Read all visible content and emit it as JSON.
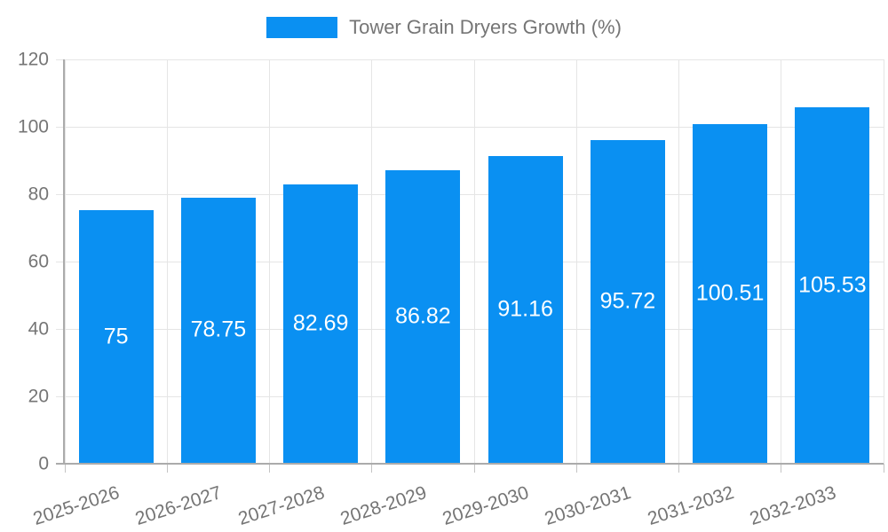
{
  "chart_data": {
    "type": "bar",
    "legend": "Tower Grain Dryers Growth (%)",
    "legend_position": "top",
    "categories": [
      "2025-2026",
      "2026-2027",
      "2027-2028",
      "2028-2029",
      "2029-2030",
      "2030-2031",
      "2031-2032",
      "2032-2033"
    ],
    "values": [
      75,
      78.75,
      82.69,
      86.82,
      91.16,
      95.72,
      100.51,
      105.53
    ],
    "value_labels": [
      "75",
      "78.75",
      "82.69",
      "86.82",
      "91.16",
      "95.72",
      "100.51",
      "105.53"
    ],
    "xlabel": "",
    "ylabel": "",
    "ylim": [
      0,
      120
    ],
    "yticks": [
      0,
      20,
      40,
      60,
      80,
      100,
      120
    ],
    "grid": true,
    "bar_color": "#0a90f2",
    "label_color": "#ffffff",
    "axis_text_color": "#757575",
    "grid_color": "#e5e5e5",
    "axis_line_color": "#ababab"
  }
}
